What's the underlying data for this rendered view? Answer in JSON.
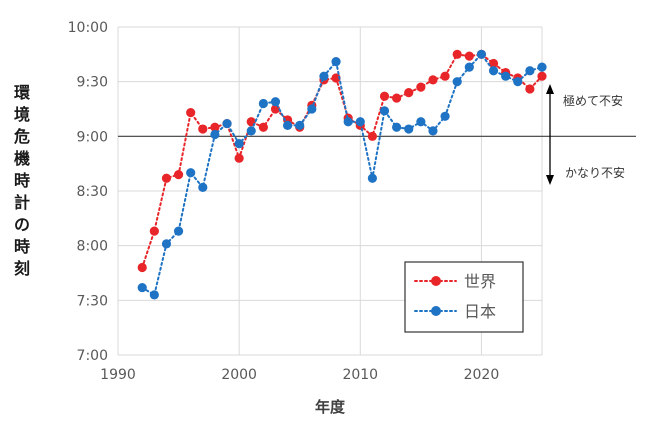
{
  "chart_data": {
    "type": "line",
    "ylabel": "環境危機時計の時刻",
    "xlabel": "年度",
    "xlim": [
      1990,
      2025
    ],
    "ylim": [
      420,
      600
    ],
    "x_ticks": [
      1990,
      2000,
      2010,
      2020
    ],
    "y_ticks": [
      {
        "value": 420,
        "label": "7:00"
      },
      {
        "value": 450,
        "label": "7:30"
      },
      {
        "value": 480,
        "label": "8:00"
      },
      {
        "value": 510,
        "label": "8:30"
      },
      {
        "value": 540,
        "label": "9:00"
      },
      {
        "value": 570,
        "label": "9:30"
      },
      {
        "value": 600,
        "label": "10:00"
      }
    ],
    "reference_line": 540,
    "annotations": {
      "upper": "極めて不安",
      "lower": "かなり不安"
    },
    "legend_position": "bottom-right",
    "series": [
      {
        "name": "世界",
        "color": "#e8262a",
        "x": [
          1992,
          1993,
          1994,
          1995,
          1996,
          1997,
          1998,
          1999,
          2000,
          2001,
          2002,
          2003,
          2004,
          2005,
          2006,
          2007,
          2008,
          2009,
          2010,
          2011,
          2012,
          2013,
          2014,
          2015,
          2016,
          2017,
          2018,
          2019,
          2020,
          2021,
          2022,
          2023,
          2024,
          2025
        ],
        "y": [
          468,
          488,
          517,
          519,
          553,
          544,
          545,
          547,
          528,
          548,
          545,
          555,
          549,
          545,
          557,
          571,
          572,
          550,
          546,
          540,
          562,
          561,
          564,
          567,
          571,
          573,
          585,
          584,
          585,
          580,
          575,
          572,
          566,
          573
        ]
      },
      {
        "name": "日本",
        "color": "#1f73c4",
        "x": [
          1992,
          1993,
          1994,
          1995,
          1996,
          1997,
          1998,
          1999,
          2000,
          2001,
          2002,
          2003,
          2004,
          2005,
          2006,
          2007,
          2008,
          2009,
          2010,
          2011,
          2012,
          2013,
          2014,
          2015,
          2016,
          2017,
          2018,
          2019,
          2020,
          2021,
          2022,
          2023,
          2024,
          2025
        ],
        "y": [
          457,
          453,
          481,
          488,
          520,
          512,
          541,
          547,
          536,
          543,
          558,
          559,
          546,
          546,
          555,
          573,
          581,
          548,
          548,
          517,
          554,
          545,
          544,
          548,
          543,
          551,
          570,
          578,
          585,
          576,
          573,
          570,
          576,
          578
        ]
      }
    ]
  }
}
